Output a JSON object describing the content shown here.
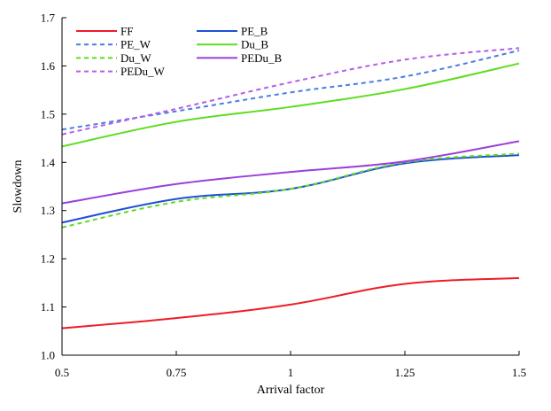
{
  "chart_data": {
    "type": "line",
    "title": "",
    "xlabel": "Arrival factor",
    "ylabel": "Slowdown",
    "x": [
      0.5,
      0.75,
      1,
      1.25,
      1.5
    ],
    "x_tick_labels": [
      "0.5",
      "0.75",
      "1",
      "1.25",
      "1.5"
    ],
    "xlim": [
      0.5,
      1.5
    ],
    "ylim": [
      1.0,
      1.7
    ],
    "y_ticks": [
      1.0,
      1.1,
      1.2,
      1.3,
      1.4,
      1.5,
      1.6,
      1.7
    ],
    "y_tick_labels": [
      "1.0",
      "1.1",
      "1.2",
      "1.3",
      "1.4",
      "1.5",
      "1.6",
      "1.7"
    ],
    "grid": false,
    "legend_position": "top-left",
    "legend_columns": 2,
    "series": [
      {
        "name": "FF",
        "color": "#ee1c25",
        "dash": "solid",
        "values": [
          1.056,
          1.077,
          1.105,
          1.148,
          1.16
        ]
      },
      {
        "name": "PE_B",
        "color": "#1f4fd6",
        "dash": "solid",
        "values": [
          1.275,
          1.324,
          1.345,
          1.398,
          1.415
        ]
      },
      {
        "name": "PE_W",
        "color": "#4a7de0",
        "dash": "dashed",
        "values": [
          1.468,
          1.506,
          1.545,
          1.578,
          1.632
        ]
      },
      {
        "name": "Du_B",
        "color": "#5edc1f",
        "dash": "solid",
        "values": [
          1.433,
          1.484,
          1.515,
          1.552,
          1.605
        ]
      },
      {
        "name": "Du_W",
        "color": "#5edc1f",
        "dash": "dashed",
        "values": [
          1.265,
          1.318,
          1.345,
          1.4,
          1.418
        ]
      },
      {
        "name": "PEDu_B",
        "color": "#9b3fd9",
        "dash": "solid",
        "values": [
          1.315,
          1.355,
          1.38,
          1.402,
          1.444
        ]
      },
      {
        "name": "PEDu_W",
        "color": "#b45ee8",
        "dash": "dashed",
        "values": [
          1.458,
          1.511,
          1.566,
          1.613,
          1.637
        ]
      }
    ]
  }
}
